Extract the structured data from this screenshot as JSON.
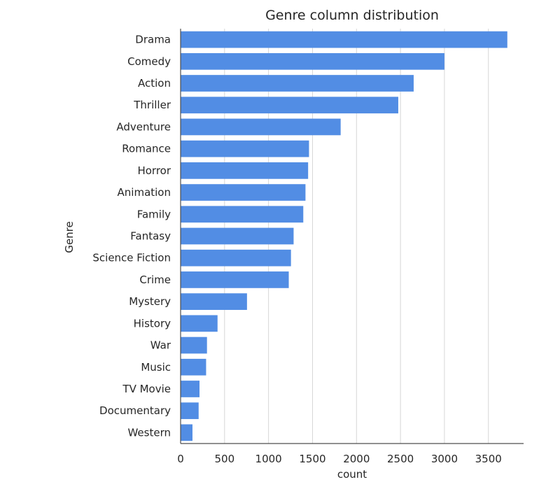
{
  "chart_data": {
    "type": "bar",
    "orientation": "horizontal",
    "title": "Genre column distribution",
    "xlabel": "count",
    "ylabel": "Genre",
    "categories": [
      "Drama",
      "Comedy",
      "Action",
      "Thriller",
      "Adventure",
      "Romance",
      "Horror",
      "Animation",
      "Family",
      "Fantasy",
      "Science Fiction",
      "Crime",
      "Mystery",
      "History",
      "War",
      "Music",
      "TV Movie",
      "Documentary",
      "Western"
    ],
    "values": [
      3715,
      3000,
      2650,
      2475,
      1820,
      1460,
      1450,
      1420,
      1395,
      1285,
      1255,
      1230,
      755,
      420,
      300,
      290,
      215,
      205,
      135
    ],
    "xlim": [
      0,
      3900
    ],
    "xticks": [
      0,
      500,
      1000,
      1500,
      2000,
      2500,
      3000,
      3500
    ],
    "grid": "vertical",
    "bar_color": "#528de4",
    "grid_color": "#d6d6d6"
  }
}
